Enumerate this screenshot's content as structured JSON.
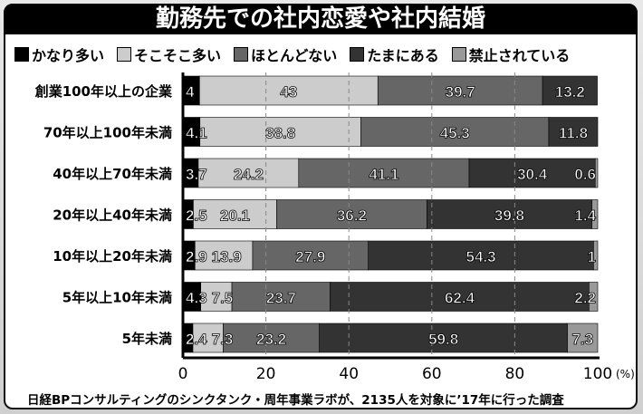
{
  "chart_data": {
    "type": "bar",
    "orientation": "horizontal",
    "stacked": true,
    "title": "勤務先での社内恋愛や社内結婚",
    "categories": [
      "創業100年以上の企業",
      "70年以上100年未満",
      "40年以上70年未満",
      "20年以上40年未満",
      "10年以上20年未満",
      "5年以上10年未満",
      "5年未満"
    ],
    "series": [
      {
        "name": "かなり多い",
        "color": "#000000",
        "values": [
          4,
          4.1,
          3.7,
          2.5,
          2.9,
          4.3,
          2.4
        ]
      },
      {
        "name": "そこそこ多い",
        "color": "#cccccc",
        "values": [
          43,
          38.8,
          24.2,
          20.1,
          13.9,
          7.5,
          7.3
        ]
      },
      {
        "name": "ほとんどない",
        "color": "#666666",
        "values": [
          39.7,
          45.3,
          41.1,
          36.2,
          27.9,
          23.7,
          23.2
        ]
      },
      {
        "name": "たまにある",
        "color": "#333333",
        "values": [
          13.2,
          11.8,
          30.4,
          39.8,
          54.3,
          62.4,
          59.8
        ]
      },
      {
        "name": "禁止されている",
        "color": "#999999",
        "values": [
          null,
          null,
          0.6,
          1.4,
          1,
          2.2,
          7.3
        ]
      }
    ],
    "xlim": [
      0,
      100
    ],
    "xticks": [
      "0",
      "20",
      "40",
      "60",
      "80",
      "100"
    ],
    "xunit": "(%)",
    "grid": true,
    "legend": "top",
    "footnote": "日経BPコンサルティングのシンクタンク・周年事業ラボが、2135人を対象に’17年に行った調査"
  }
}
